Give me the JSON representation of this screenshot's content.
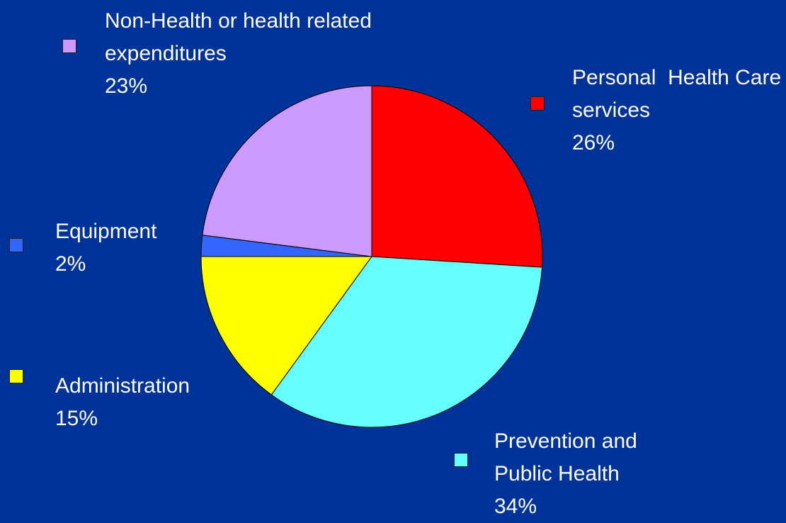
{
  "chart_data": {
    "type": "pie",
    "categories": [
      "Personal  Health Care services",
      "Prevention and Public Health",
      "Administration",
      "Equipment",
      "Non-Health or health related expenditures"
    ],
    "values": [
      26,
      34,
      15,
      2,
      23
    ],
    "value_labels": [
      "26%",
      "34%",
      "15%",
      "2%",
      "23%"
    ],
    "colors": [
      "#ff0000",
      "#66ffff",
      "#ffff00",
      "#3366ff",
      "#cc99ff"
    ]
  }
}
